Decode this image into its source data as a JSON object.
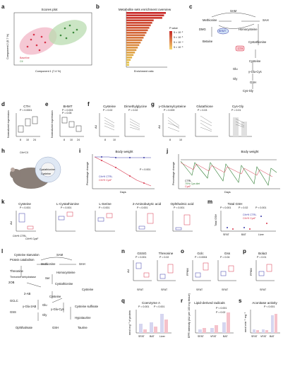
{
  "panels": {
    "a": {
      "label": "a",
      "title": "Scores plot",
      "xlabel": "Component 1 (7.4 %)",
      "ylabel": "Component 2 (5.7 %)",
      "legend": [
        "Baseline",
        "Ctl"
      ]
    },
    "b": {
      "label": "b",
      "title": "Metabolite sets enrichment overview",
      "xlabel": "Enrichment ratio",
      "legend_title": "P value",
      "legend_ticks": [
        "5 × 10⁻²",
        "5 × 10⁻³",
        "5 × 10⁻⁴",
        "5 × 10⁻⁵"
      ]
    },
    "c": {
      "label": "c",
      "nodes": {
        "sam": "SAM",
        "methionine": "Methionine",
        "sah": "SAH",
        "homocysteine": "Homocysteine",
        "dmg": "DMG",
        "bhmt": "BHMT",
        "betaine": "Betaine",
        "cystathionine": "Cystathionine",
        "cth": "CTH",
        "cysteine": "Cysteine",
        "glu": "Glu",
        "gly": "Gly",
        "gglucys": "γ-Glu-Cys",
        "gsh": "GSH",
        "cysgly": "Cys-Gly"
      }
    },
    "d": {
      "label": "d",
      "title": "CTH",
      "ylabel": "Normalized expression",
      "pvalue": "P < 0.0001",
      "xticks": [
        "8",
        "10",
        "24"
      ]
    },
    "e": {
      "label": "e",
      "title": "BHMT",
      "ylabel": "Normalized expression",
      "pvalues": [
        "P = 0.003",
        "P = 0.05"
      ],
      "xticks": [
        "8",
        "10",
        "24"
      ]
    },
    "f": {
      "label": "f",
      "titles": [
        "Cysteine",
        "Dimethylglycine"
      ],
      "pvalues": [
        "P = 0.02",
        "P = 0.02"
      ],
      "ylabel": "AU",
      "xticks": [
        "8",
        "10"
      ]
    },
    "g": {
      "label": "g",
      "titles": [
        "γ-Glutamylcysteine",
        "Glutathione",
        "Cys-Gly"
      ],
      "pvalues": [
        "P = 0.009",
        "P = 0.03",
        "P = 0.01"
      ],
      "ylabel": "AU",
      "xticks": [
        "8",
        "10"
      ]
    },
    "h": {
      "label": "h",
      "top": "Cth^CX",
      "inner": [
        "Cystathionine",
        "Cysteine"
      ]
    },
    "i": {
      "label": "i",
      "title": "Body weight",
      "ylabel": "Percentage change",
      "xlabel": "Days",
      "pvalue": "P < 0.001",
      "legend": [
        "Cth^fl CTRL",
        "Cth^fl CysF"
      ]
    },
    "j": {
      "label": "j",
      "title": "Body weight",
      "ylabel": "Percentage change",
      "xlabel": "Days",
      "legend": [
        "CTRL",
        "70% Cys diet",
        "CysF"
      ]
    },
    "k": {
      "label": "k",
      "titles": [
        "Cysteine",
        "L-Cystathionine",
        "L-Serine",
        "2-Aminobutyric acid",
        "Ophthalmic acid"
      ],
      "pvalues": [
        "P < 0.001",
        "P < 0.001",
        "P < 0.001",
        "P < 0.001",
        "P < 0.001"
      ],
      "ylabel": "AU",
      "xticks": [
        "Cth^fl CTRL",
        "Cth^fl CysF"
      ]
    },
    "m": {
      "label": "m",
      "title": "Total GSH",
      "ylabel": "Total GSH",
      "pvalues": [
        "P < 0.001",
        "P = 0.02",
        "P < 0.001"
      ],
      "xticks": [
        "SFAT",
        "BAT",
        "Liver"
      ],
      "legend": [
        "Cth^fl CTRL",
        "Cth^fl CysF"
      ]
    },
    "l": {
      "label": "l",
      "items": {
        "starvation": "Cysteine starvation",
        "catabolism": "Protein catabolism",
        "sam": "SAM",
        "methionine": "Methionine",
        "sah": "SAH",
        "homocysteine": "Homocysteine",
        "threonine": "Threonine",
        "thdh": "Threonine dehydratase",
        "ser": "Ser",
        "two_ob": "2OB",
        "cystathionine": "Cystathionine",
        "cysteine": "Cysteine",
        "taurine_up": "Cysteine",
        "two_ab": "2-AB",
        "cysteine2": "Cysteine",
        "gclc": "GCLC",
        "gluabu": "γ-Glu-2AB",
        "gss": "GSS",
        "glu": "Glu",
        "gly": "Gly",
        "gglucys": "γ-Glu-Cys",
        "sulfinate": "Cysteine sulfinate",
        "hypotaurine": "Hypotaurine",
        "ophthalmate": "Ophthalmate",
        "gsh": "GSH",
        "taurine": "Taurine"
      }
    },
    "n": {
      "label": "n",
      "titles": [
        "GSSG",
        "Threonine"
      ],
      "pvalues": [
        "P < 0.001",
        "P = 0.02"
      ],
      "ylabel": "AU",
      "xlabel": "SFAT"
    },
    "o": {
      "label": "o",
      "titles": [
        "Gclc",
        "Gss"
      ],
      "pvalues": [
        "P = 0.0004",
        "P = 0.04"
      ],
      "ylabel": "FPKM",
      "xlabel": "SFAT"
    },
    "p": {
      "label": "p",
      "titles": [
        "Bola3"
      ],
      "pvalues": [
        "P = 0.01"
      ],
      "ylabel": "FPKM",
      "xlabel": "SFAT"
    },
    "q": {
      "label": "q",
      "title": "Coenzyme A",
      "ylabel": "nmol mg⁻¹ of protein",
      "pvalues": [
        "P = 0.001",
        "P < 0.001"
      ],
      "xticks": [
        "SFAT",
        "BAT",
        "Liver"
      ]
    },
    "r": {
      "label": "r",
      "title": "Lipid-derived radicals",
      "ylabel": "EPR intensity (AU per 100 mg tissue)",
      "pvalues": [
        "P = 0.02",
        "P < 0.001"
      ],
      "xticks": [
        "SFAT",
        "VFAT",
        "BAT"
      ]
    },
    "s": {
      "label": "s",
      "title": "Aconitase activity",
      "ylabel": "nmol min⁻¹ mg⁻¹",
      "pvalues": [
        "P < 0.001"
      ],
      "xticks": [
        "SFAT",
        "VFAT",
        "BAT"
      ]
    }
  },
  "colors": {
    "ctrl": "#3a3aa8",
    "cysf": "#d8344a",
    "pink": "#f2b5c6",
    "green": "#b9dcb0",
    "bar_red": "#c62828",
    "bar_orange": "#e5a125"
  }
}
